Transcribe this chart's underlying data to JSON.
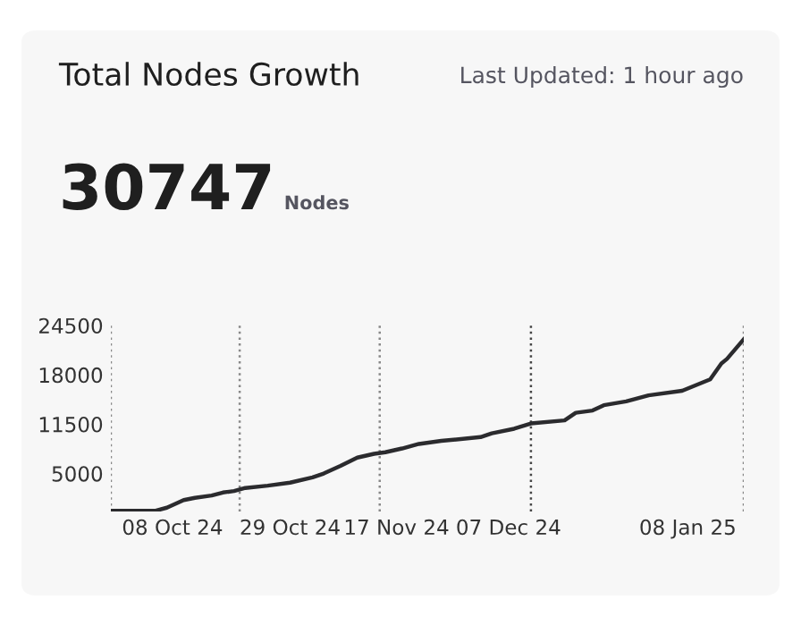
{
  "chart_data": {
    "type": "line",
    "title": "Total Nodes Growth",
    "subtitle": "Last Updated: 1 hour ago",
    "annotations": [
      "30747",
      "Nodes"
    ],
    "x": [
      "2024-09-27",
      "2024-10-05",
      "2024-10-07",
      "2024-10-10",
      "2024-10-12",
      "2024-10-15",
      "2024-10-17",
      "2024-10-19",
      "2024-10-21",
      "2024-10-25",
      "2024-10-29",
      "2024-11-02",
      "2024-11-04",
      "2024-11-07",
      "2024-11-10",
      "2024-11-13",
      "2024-11-15",
      "2024-11-18",
      "2024-11-21",
      "2024-11-25",
      "2024-12-02",
      "2024-12-04",
      "2024-12-08",
      "2024-12-11",
      "2024-12-17",
      "2024-12-19",
      "2024-12-22",
      "2024-12-24",
      "2024-12-28",
      "2025-01-01",
      "2025-01-07",
      "2025-01-12",
      "2025-01-14",
      "2025-01-15",
      "2025-01-18"
    ],
    "series": [
      {
        "color": "#2b2b2e",
        "values": [
          100,
          100,
          500,
          1500,
          1800,
          2100,
          2500,
          2700,
          3100,
          3400,
          3800,
          4500,
          5000,
          6000,
          7100,
          7600,
          7800,
          8300,
          8900,
          9300,
          9800,
          10300,
          10900,
          11600,
          12000,
          13000,
          13300,
          14000,
          14500,
          15300,
          15900,
          17400,
          19500,
          20100,
          22700
        ]
      }
    ],
    "xlim": [
      "2024-09-27",
      "2025-01-18"
    ],
    "xticks": [
      {
        "value": "2024-10-08",
        "label": "08 Oct 24"
      },
      {
        "value": "2024-10-29",
        "label": "29 Oct 24"
      },
      {
        "value": "2024-11-17",
        "label": "17 Nov 24"
      },
      {
        "value": "2024-12-07",
        "label": "07 Dec 24"
      },
      {
        "value": "2025-01-08",
        "label": "08 Jan 25"
      }
    ],
    "ylim": [
      0,
      24500
    ],
    "yticks": [
      5000,
      11500,
      18000,
      24500
    ],
    "ref_lines": [
      {
        "axis": "x",
        "value": "2024-09-27",
        "color": "#888888",
        "line_style": "dotted"
      },
      {
        "axis": "x",
        "value": "2024-10-20",
        "color": "#888888",
        "line_style": "dotted"
      },
      {
        "axis": "x",
        "value": "2024-11-14",
        "color": "#888888",
        "line_style": "dotted"
      },
      {
        "axis": "x",
        "value": "2024-12-11",
        "color": "#444444",
        "line_style": "dotted"
      },
      {
        "axis": "x",
        "value": "2025-01-18",
        "color": "#888888",
        "line_style": "dotted"
      }
    ],
    "line_style": "solid"
  }
}
